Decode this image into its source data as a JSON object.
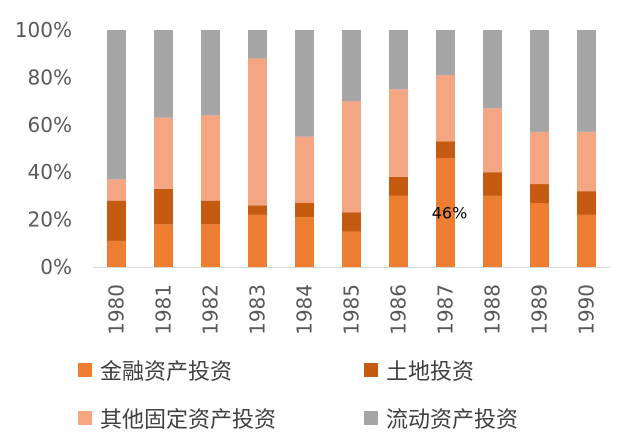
{
  "chart_data": {
    "type": "bar",
    "stacked": "percent",
    "categories": [
      "1980",
      "1981",
      "1982",
      "1983",
      "1984",
      "1985",
      "1986",
      "1987",
      "1988",
      "1989",
      "1990"
    ],
    "ylim": [
      0,
      100
    ],
    "yticks": [
      "0%",
      "20%",
      "40%",
      "60%",
      "80%",
      "100%"
    ],
    "grid": false,
    "legend_position": "bottom",
    "series": [
      {
        "name": "金融资产投资",
        "color": "#ED7D31",
        "values": [
          11,
          18,
          18,
          22,
          21,
          15,
          30,
          46,
          30,
          27,
          22
        ]
      },
      {
        "name": "土地投资",
        "color": "#C55A11",
        "values": [
          17,
          15,
          10,
          4,
          6,
          8,
          8,
          7,
          10,
          8,
          10
        ]
      },
      {
        "name": "其他固定资产投资",
        "color": "#F4A582",
        "values": [
          9,
          30,
          36,
          62,
          28,
          47,
          37,
          28,
          27,
          22,
          25
        ]
      },
      {
        "name": "流动资产投资",
        "color": "#A6A6A6",
        "values": [
          63,
          37,
          36,
          12,
          45,
          30,
          25,
          19,
          33,
          43,
          43
        ]
      }
    ],
    "annotations": [
      {
        "category": "1987",
        "series": "金融资产投资",
        "text": "46%"
      }
    ]
  }
}
